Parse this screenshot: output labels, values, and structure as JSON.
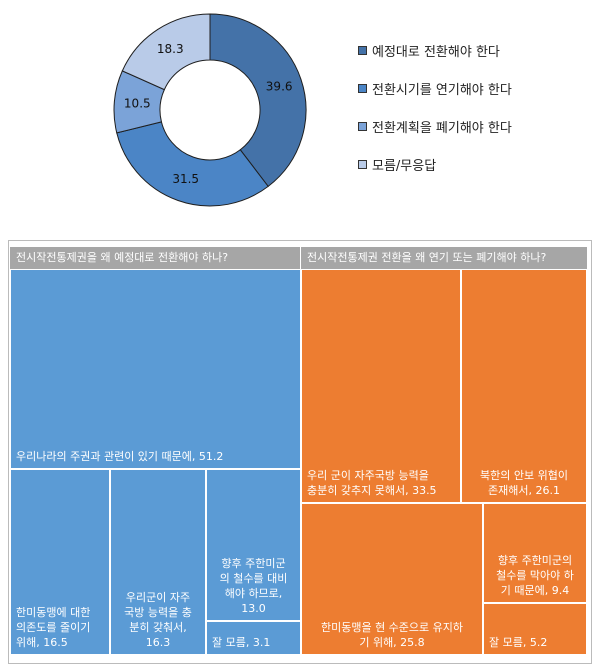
{
  "chart_data": [
    {
      "type": "pie",
      "variant": "donut",
      "slices": [
        {
          "label": "예정대로 전환해야 한다",
          "value": 39.6,
          "color": "#4472a8"
        },
        {
          "label": "전환시기를 연기해야 한다",
          "value": 31.5,
          "color": "#4b85c6"
        },
        {
          "label": "전환계획을 폐기해야 한다",
          "value": 10.5,
          "color": "#7ba3d8"
        },
        {
          "label": "모름/무응답",
          "value": 18.3,
          "color": "#b9cbe8"
        }
      ],
      "value_labels": [
        "39.6",
        "31.5",
        "10.5",
        "18.3"
      ],
      "legend_position": "right"
    },
    {
      "type": "treemap",
      "groups": [
        {
          "title": "전시작전통제권을 왜 예정대로 전환해야 하나?",
          "color": "#5b9bd5",
          "items": [
            {
              "label": "우리나라의 주권과 관련이 있기 때문에, 51.2",
              "value": 51.2
            },
            {
              "label": "한미동맹에 대한\n의존도를 줄이기\n위해, 16.5",
              "value": 16.5
            },
            {
              "label": "우리군이 자주\n국방 능력을 충\n분히 갖춰서,\n16.3",
              "value": 16.3
            },
            {
              "label": "향후 주한미군\n의 철수를 대비\n해야 하므로,\n13.0",
              "value": 13.0
            },
            {
              "label": "잘 모름, 3.1",
              "value": 3.1
            }
          ]
        },
        {
          "title": "전시작전통제권 전환을 왜 연기 또는 폐기해야 하나?",
          "color": "#ed7d31",
          "items": [
            {
              "label": "우리 군이 자주국방 능력을\n충분히 갖추지 못해서, 33.5",
              "value": 33.5
            },
            {
              "label": "북한의 안보 위협이\n존재해서, 26.1",
              "value": 26.1
            },
            {
              "label": "한미동맹을 현 수준으로 유지하\n기 위해, 25.8",
              "value": 25.8
            },
            {
              "label": "향후 주한미군의\n철수를 막아야 하\n기 때문에, 9.4",
              "value": 9.4
            },
            {
              "label": "잘 모름, 5.2",
              "value": 5.2
            }
          ]
        }
      ]
    }
  ]
}
